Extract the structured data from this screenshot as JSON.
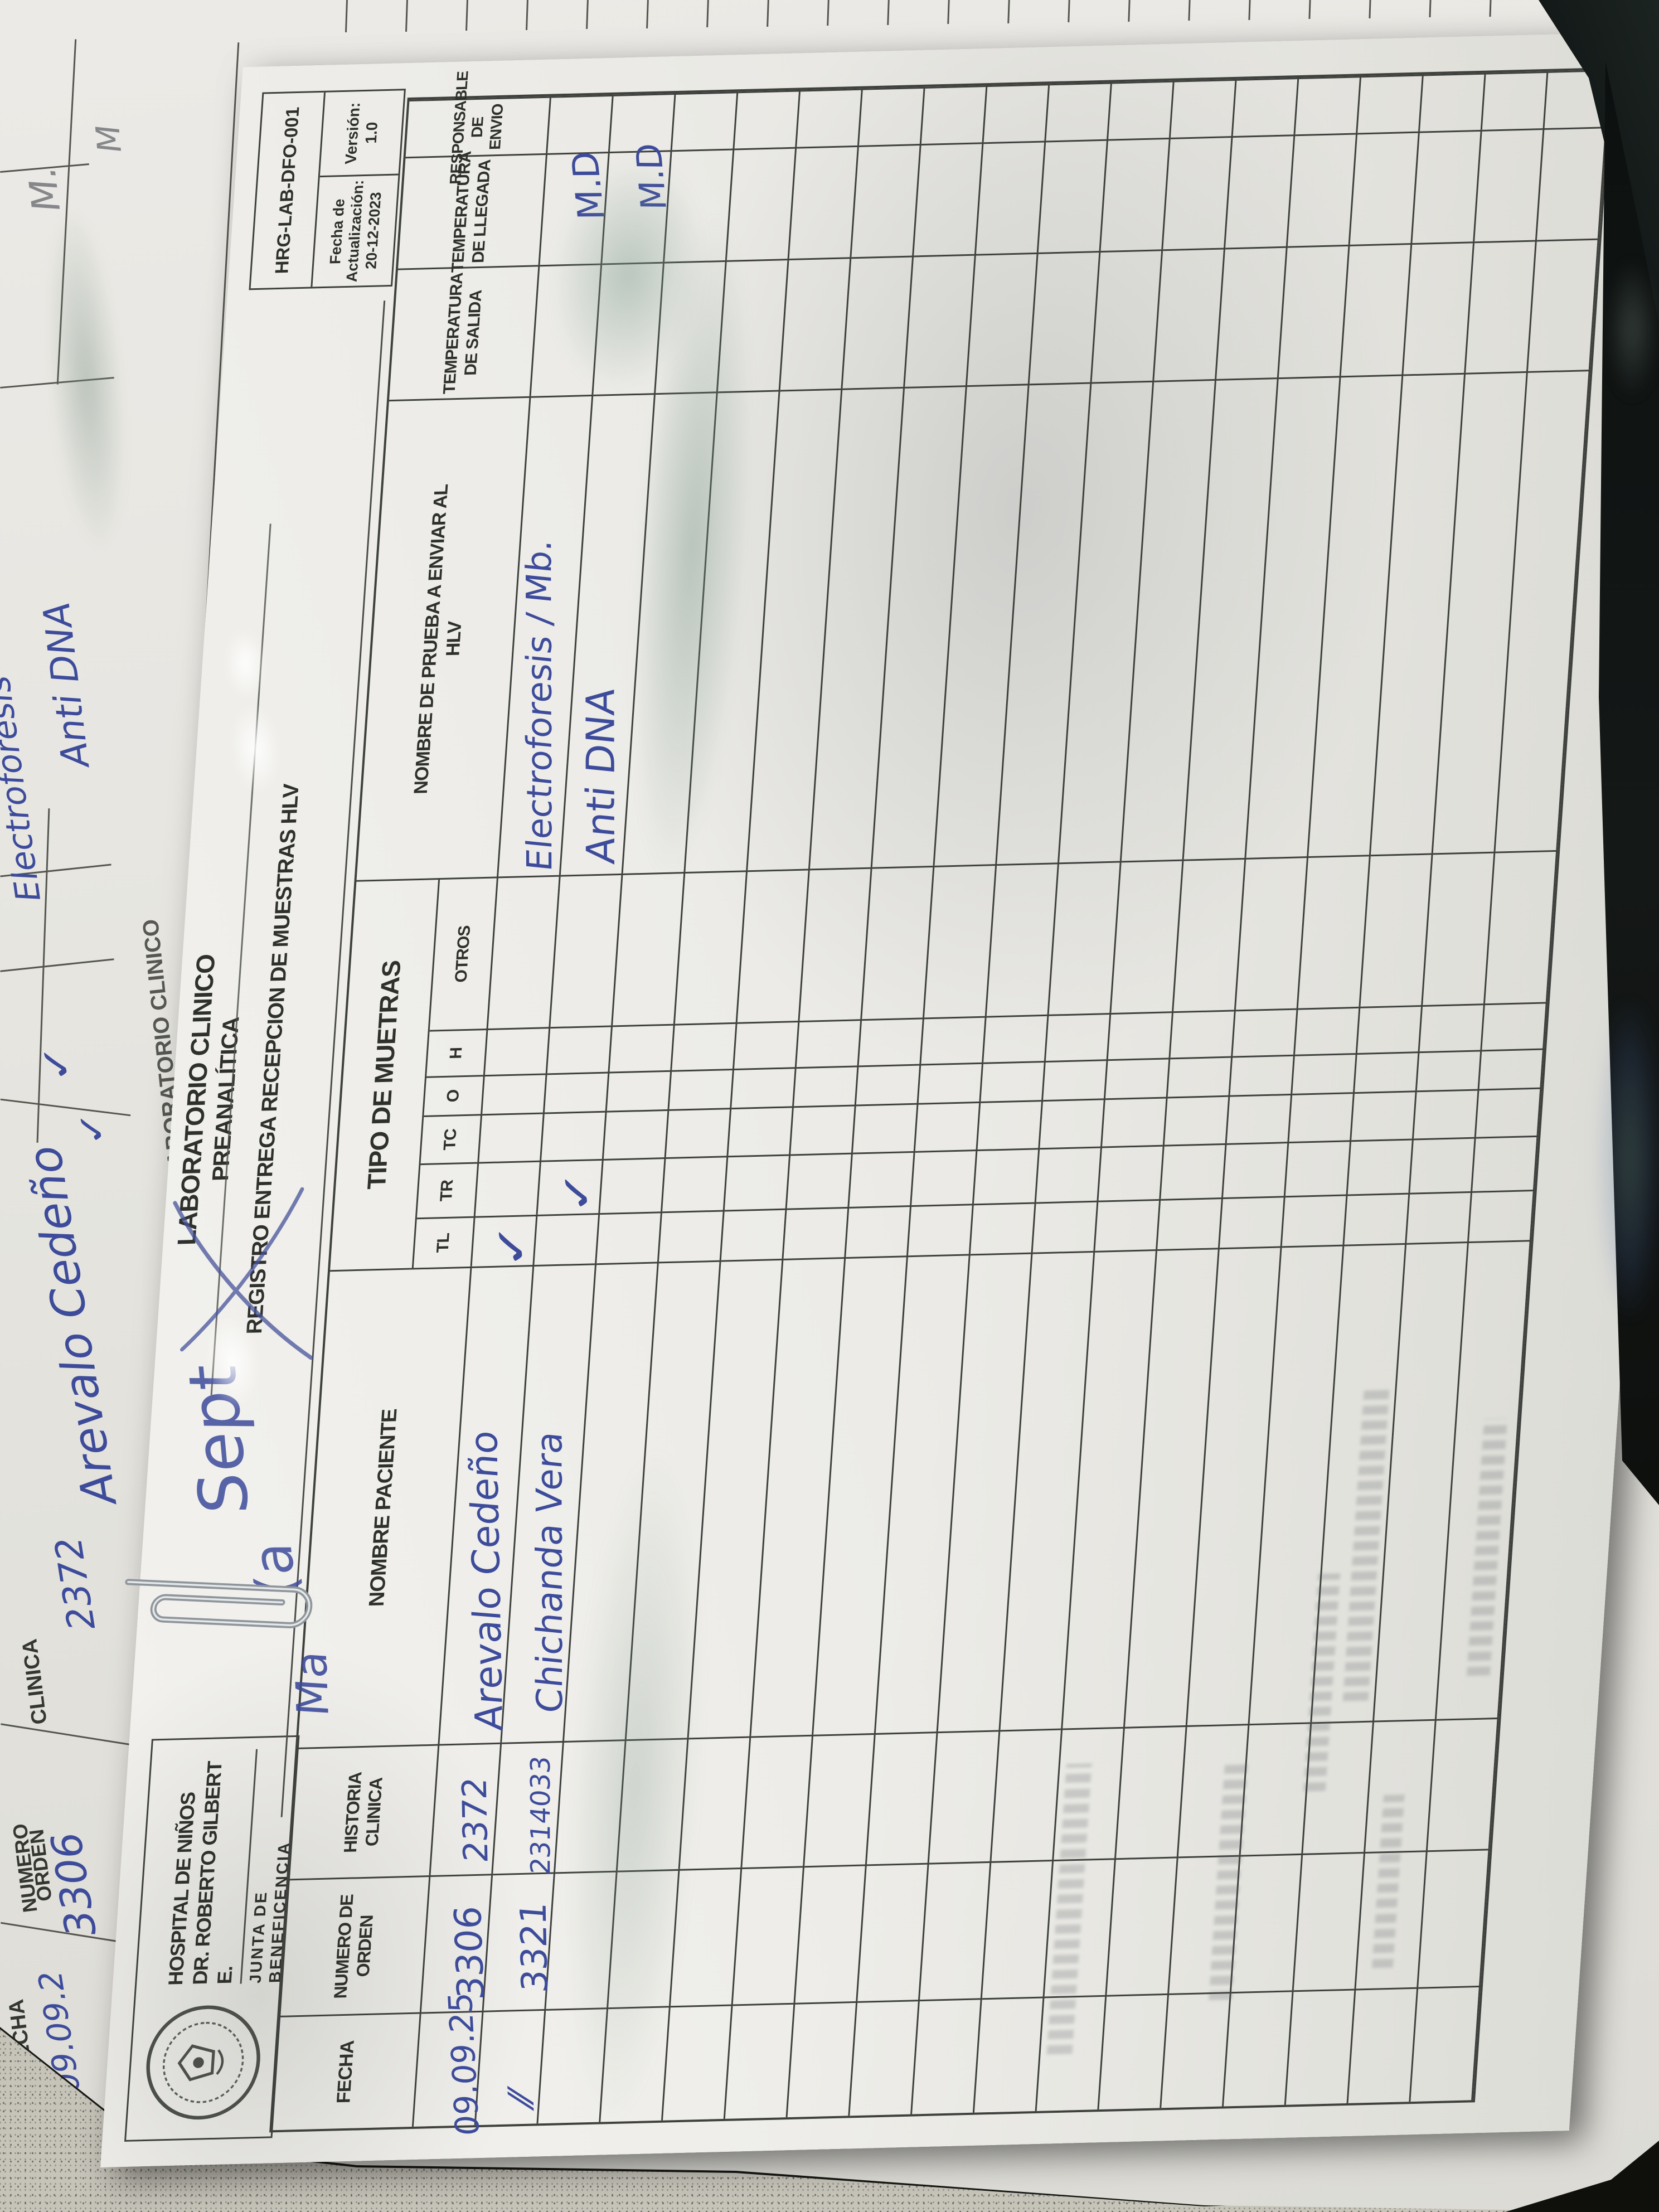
{
  "document": {
    "code": "HRG-LAB-DFO-001",
    "update_label_1": "Fecha de",
    "update_label_2": "Actualización:",
    "update_date": "20-12-2023",
    "version_label": "Versión:",
    "version": "1.0",
    "hospital": {
      "line1": "HOSPITAL DE NIÑOS",
      "line2": "DR. ROBERTO GILBERT E.",
      "line3": "JUNTA DE BENEFICENCIA"
    },
    "department": {
      "line1": "LABORATORIO CLINICO",
      "line2": "PREANALÍTICA"
    },
    "title": "REGISTRO ENTREGA RECEPCION DE MUESTRAS HLV"
  },
  "table": {
    "headers": {
      "fecha": "FECHA",
      "numero_orden": [
        "NUMERO DE",
        "ORDEN"
      ],
      "historia": [
        "HISTORIA",
        "CLINICA"
      ],
      "nombre_paciente": "NOMBRE PACIENTE",
      "tipo_muestras": "TIPO DE MUETRAS",
      "subcols": [
        "TL",
        "TR",
        "TC",
        "O",
        "H",
        "OTROS"
      ],
      "prueba": [
        "NOMBRE DE PRUEBA A ENVIAR AL",
        "HLV"
      ],
      "temp_salida": [
        "TEMPERATURA",
        "DE SALIDA"
      ],
      "temp_llegada": [
        "TEMPERATURA",
        "DE LLEGADA"
      ],
      "responsable": [
        "RESPONSABLE",
        "DE ENVIO"
      ]
    },
    "rows": [
      {
        "fecha": "09.09.25",
        "orden": "3306",
        "historia": "2372",
        "nombre": "Arevalo Cedeño",
        "tl": "✓",
        "tr": "",
        "prueba": "Electroforesis / Mb.",
        "responsable": "M.D"
      },
      {
        "fecha": "⁄⁄",
        "orden": "3321",
        "historia": "2314033",
        "nombre": "Chichanda Vera",
        "tl": "",
        "tr": "✓",
        "prueba": "Anti DNA",
        "responsable": "M.D"
      },
      {
        "note": "washed-out erased entry (illegible)"
      }
    ]
  },
  "annotations": {
    "script_word_1": "Ma",
    "script_word_2": "(a",
    "script_word_3": "Sept"
  },
  "background_sheet": {
    "labels": {
      "fecha": "FECHA",
      "numero_1": "NUMERO",
      "numero_2": "ORDEN",
      "clinica": "CLINICA",
      "lab": "LABORATORIO CLINICO"
    },
    "handwriting": {
      "historia": "2372",
      "nombre": "Arevalo Cedeño",
      "orden": "3306",
      "fecha_partial": "09.09.2",
      "prueba1": "Electroforesis",
      "prueba2": "Anti DNA",
      "check1": "✓",
      "check2": "✓",
      "pencil1": "M.",
      "pencil2": "M",
      "pencil3": "M"
    }
  }
}
